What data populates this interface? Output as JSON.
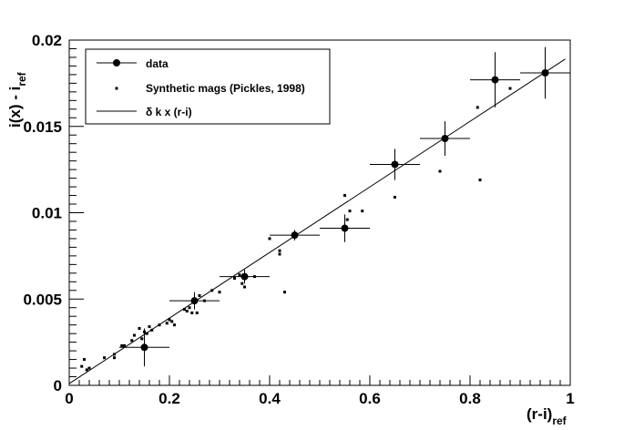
{
  "chart_data": {
    "type": "scatter",
    "xlabel": "(r-i)",
    "xlabel_sub": "ref",
    "ylabel": "i(x) - i",
    "ylabel_sub": "ref",
    "xlim": [
      0,
      1.0
    ],
    "ylim": [
      0,
      0.02
    ],
    "x_ticks": [
      "0",
      "0.2",
      "0.4",
      "0.6",
      "0.8",
      "1"
    ],
    "y_ticks": [
      "0",
      "0.005",
      "0.01",
      "0.015",
      "0.02"
    ],
    "x_tick_values": [
      0,
      0.2,
      0.4,
      0.6,
      0.8,
      1.0
    ],
    "y_tick_values": [
      0,
      0.005,
      0.01,
      0.015,
      0.02
    ],
    "grid": false,
    "legend_position": "top-left",
    "legend": [
      "data",
      "Synthetic mags (Pickles, 1998)",
      "δ k x (r-i)"
    ],
    "series": [
      {
        "name": "data",
        "style": "markers-with-errorbars",
        "points": [
          {
            "x": 0.15,
            "y": 0.0022,
            "xerr": 0.05,
            "yerr": 0.0011
          },
          {
            "x": 0.25,
            "y": 0.0049,
            "xerr": 0.05,
            "yerr": 0.0005
          },
          {
            "x": 0.35,
            "y": 0.0063,
            "xerr": 0.05,
            "yerr": 0.0004
          },
          {
            "x": 0.45,
            "y": 0.0087,
            "xerr": 0.05,
            "yerr": 0.0003
          },
          {
            "x": 0.55,
            "y": 0.0091,
            "xerr": 0.05,
            "yerr": 0.0008
          },
          {
            "x": 0.65,
            "y": 0.0128,
            "xerr": 0.05,
            "yerr": 0.0009
          },
          {
            "x": 0.75,
            "y": 0.0143,
            "xerr": 0.05,
            "yerr": 0.001
          },
          {
            "x": 0.85,
            "y": 0.0177,
            "xerr": 0.05,
            "yerr": 0.0016
          },
          {
            "x": 0.95,
            "y": 0.0181,
            "xerr": 0.05,
            "yerr": 0.0015
          }
        ]
      },
      {
        "name": "Synthetic mags (Pickles, 1998)",
        "style": "small-square-markers",
        "points": [
          [
            0.025,
            0.0011
          ],
          [
            0.03,
            0.0015
          ],
          [
            0.035,
            0.0009
          ],
          [
            0.04,
            0.001
          ],
          [
            0.07,
            0.0016
          ],
          [
            0.09,
            0.0018
          ],
          [
            0.09,
            0.0016
          ],
          [
            0.105,
            0.0023
          ],
          [
            0.11,
            0.0023
          ],
          [
            0.125,
            0.0026
          ],
          [
            0.13,
            0.0029
          ],
          [
            0.14,
            0.0033
          ],
          [
            0.145,
            0.0027
          ],
          [
            0.15,
            0.0031
          ],
          [
            0.155,
            0.003
          ],
          [
            0.16,
            0.0034
          ],
          [
            0.165,
            0.0032
          ],
          [
            0.18,
            0.0035
          ],
          [
            0.195,
            0.0036
          ],
          [
            0.2,
            0.0038
          ],
          [
            0.205,
            0.0037
          ],
          [
            0.21,
            0.0035
          ],
          [
            0.23,
            0.0044
          ],
          [
            0.235,
            0.0043
          ],
          [
            0.24,
            0.0045
          ],
          [
            0.245,
            0.0042
          ],
          [
            0.255,
            0.0042
          ],
          [
            0.26,
            0.0052
          ],
          [
            0.27,
            0.0049
          ],
          [
            0.285,
            0.0055
          ],
          [
            0.3,
            0.0054
          ],
          [
            0.33,
            0.0062
          ],
          [
            0.34,
            0.0064
          ],
          [
            0.345,
            0.0059
          ],
          [
            0.35,
            0.0057
          ],
          [
            0.37,
            0.0063
          ],
          [
            0.4,
            0.0085
          ],
          [
            0.42,
            0.0078
          ],
          [
            0.42,
            0.0076
          ],
          [
            0.43,
            0.0054
          ],
          [
            0.55,
            0.011
          ],
          [
            0.555,
            0.0096
          ],
          [
            0.56,
            0.0101
          ],
          [
            0.585,
            0.0101
          ],
          [
            0.65,
            0.0109
          ],
          [
            0.74,
            0.0124
          ],
          [
            0.815,
            0.0161
          ],
          [
            0.82,
            0.0119
          ],
          [
            0.88,
            0.0172
          ]
        ]
      },
      {
        "name": "δ k x (r-i)",
        "style": "line",
        "points": [
          [
            0.0,
            0.0001
          ],
          [
            0.99,
            0.0189
          ]
        ]
      }
    ]
  }
}
